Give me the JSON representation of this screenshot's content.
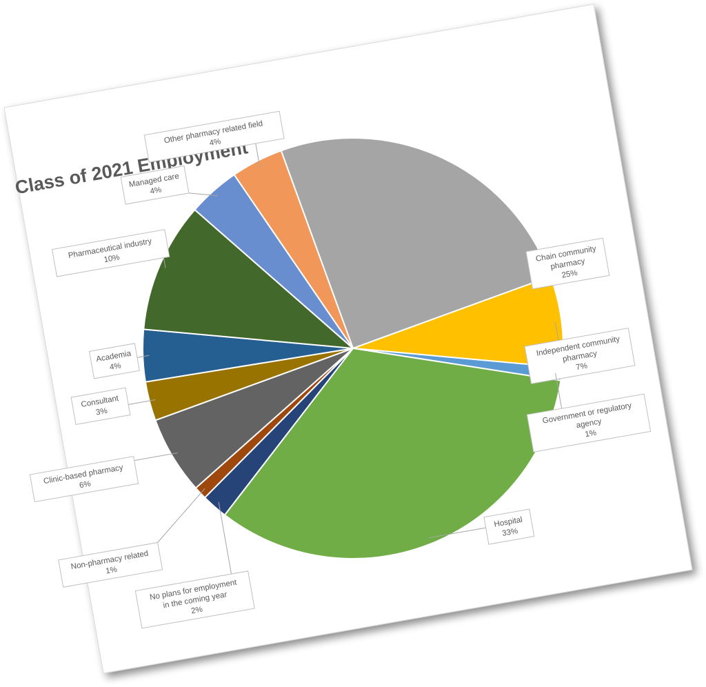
{
  "chart_data": {
    "type": "pie",
    "title": "Class of 2021 Employment",
    "slices": [
      {
        "label": "Chain community pharmacy",
        "value": 25,
        "percent_label": "25%",
        "color": "#A5A5A5"
      },
      {
        "label": "Independent community pharmacy",
        "value": 7,
        "percent_label": "7%",
        "color": "#FFC000"
      },
      {
        "label": "Government or regulatory agency",
        "value": 1,
        "percent_label": "1%",
        "color": "#5B9BD5"
      },
      {
        "label": "Hospital",
        "value": 33,
        "percent_label": "33%",
        "color": "#70AD47"
      },
      {
        "label": "No plans for employment in the coming year",
        "value": 2,
        "percent_label": "2%",
        "color": "#264478"
      },
      {
        "label": "Non-pharmacy related",
        "value": 1,
        "percent_label": "1%",
        "color": "#9E480E"
      },
      {
        "label": "Clinic-based pharmacy",
        "value": 6,
        "percent_label": "6%",
        "color": "#636363"
      },
      {
        "label": "Consultant",
        "value": 3,
        "percent_label": "3%",
        "color": "#997300"
      },
      {
        "label": "Academia",
        "value": 4,
        "percent_label": "4%",
        "color": "#255E91"
      },
      {
        "label": "Pharmaceutical industry",
        "value": 10,
        "percent_label": "10%",
        "color": "#43682B"
      },
      {
        "label": "Managed care",
        "value": 4,
        "percent_label": "4%",
        "color": "#698ED0"
      },
      {
        "label": "Other pharmacy related field",
        "value": 4,
        "percent_label": "4%",
        "color": "#F1975A"
      }
    ],
    "legend": "none",
    "data_labels": "callouts"
  }
}
